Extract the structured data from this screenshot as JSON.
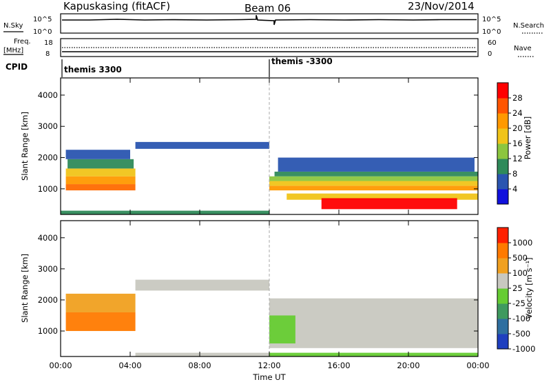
{
  "header": {
    "title": "Kapuskasing (fitACF)",
    "beam": "Beam 06",
    "date": "23/Nov/2014"
  },
  "noise_panel": {
    "left_label": "N.Sky",
    "right_label": "N.Search",
    "ticks": [
      "10^5",
      "10^0"
    ]
  },
  "freq_panel": {
    "left_label": "Freq.",
    "unit_label": "[MHz]",
    "left_ticks": [
      "18",
      "8"
    ],
    "right_label": "Nave",
    "right_ticks": [
      "60",
      "0"
    ]
  },
  "cpid": {
    "label": "CPID",
    "segments": [
      "themis 3300",
      "themis -3300"
    ]
  },
  "chart_data": [
    {
      "type": "heatmap",
      "name": "power",
      "ylabel": "Slant Range [km]",
      "xlabel": "",
      "x_ticks": [
        "00:00",
        "04:00",
        "08:00",
        "12:00",
        "16:00",
        "20:00",
        "00:00"
      ],
      "y_ticks": [
        "1000",
        "2000",
        "3000",
        "4000"
      ],
      "ylim": [
        180,
        4550
      ],
      "xlim_hours": [
        0,
        24
      ],
      "colorbar": {
        "label": "Power [dB]",
        "ticks": [
          "4",
          "8",
          "12",
          "16",
          "20",
          "24",
          "28"
        ],
        "colors": [
          "#1111dd",
          "#2a55b0",
          "#2f8a5a",
          "#8cc63f",
          "#f0c419",
          "#ff9900",
          "#ff5500",
          "#ff0000"
        ]
      },
      "bands": [
        {
          "t0": 0.3,
          "t1": 4.3,
          "r0": 950,
          "r1": 1150,
          "color": "#ff6a00"
        },
        {
          "t0": 0.3,
          "t1": 4.3,
          "r0": 1150,
          "r1": 1400,
          "color": "#ff9900"
        },
        {
          "t0": 0.3,
          "t1": 4.3,
          "r0": 1400,
          "r1": 1650,
          "color": "#f0c419"
        },
        {
          "t0": 0.4,
          "t1": 4.2,
          "r0": 1650,
          "r1": 1950,
          "color": "#2f8a5a"
        },
        {
          "t0": 0.3,
          "t1": 4.0,
          "r0": 1950,
          "r1": 2250,
          "color": "#2a55b0"
        },
        {
          "t0": 4.3,
          "t1": 12.0,
          "r0": 2280,
          "r1": 2500,
          "color": "#2a55b0"
        },
        {
          "t0": 12.0,
          "t1": 24.0,
          "r0": 950,
          "r1": 1100,
          "color": "#ff9900"
        },
        {
          "t0": 12.0,
          "t1": 24.0,
          "r0": 1100,
          "r1": 1250,
          "color": "#f0c419"
        },
        {
          "t0": 12.0,
          "t1": 24.0,
          "r0": 1250,
          "r1": 1400,
          "color": "#8cc63f"
        },
        {
          "t0": 12.3,
          "t1": 24.0,
          "r0": 1400,
          "r1": 1550,
          "color": "#2f8a5a"
        },
        {
          "t0": 12.5,
          "t1": 23.8,
          "r0": 1550,
          "r1": 2000,
          "color": "#2a55b0"
        },
        {
          "t0": 13.0,
          "t1": 24.0,
          "r0": 650,
          "r1": 850,
          "color": "#f0c419"
        },
        {
          "t0": 15.0,
          "t1": 22.8,
          "r0": 350,
          "r1": 700,
          "color": "#ff0000"
        },
        {
          "t0": 0.0,
          "t1": 12.0,
          "r0": 180,
          "r1": 300,
          "color": "#2f8a5a"
        }
      ]
    },
    {
      "type": "heatmap",
      "name": "velocity",
      "ylabel": "Slant Range [km]",
      "xlabel": "Time UT",
      "x_ticks": [
        "00:00",
        "04:00",
        "08:00",
        "12:00",
        "16:00",
        "20:00",
        "00:00"
      ],
      "y_ticks": [
        "1000",
        "2000",
        "3000",
        "4000"
      ],
      "ylim": [
        180,
        4550
      ],
      "xlim_hours": [
        0,
        24
      ],
      "colorbar": {
        "label": "Velocity [m s⁻¹]",
        "ticks": [
          "1000",
          "500",
          "100",
          "25",
          "-25",
          "-100",
          "-500",
          "-1000"
        ],
        "colors": [
          "#1f3fbf",
          "#2f6fa0",
          "#3f9a5f",
          "#66cc33",
          "#c8c8c0",
          "#f0a020",
          "#ff7a00",
          "#ff2000"
        ]
      },
      "bands": [
        {
          "t0": 0.3,
          "t1": 4.3,
          "r0": 1000,
          "r1": 1600,
          "color": "#ff7a00"
        },
        {
          "t0": 0.3,
          "t1": 4.3,
          "r0": 1600,
          "r1": 2200,
          "color": "#f0a020"
        },
        {
          "t0": 4.3,
          "t1": 12.0,
          "r0": 2300,
          "r1": 2650,
          "color": "#c8c8c0"
        },
        {
          "t0": 12.0,
          "t1": 24.0,
          "r0": 450,
          "r1": 2050,
          "color": "#c8c8c0"
        },
        {
          "t0": 12.0,
          "t1": 13.5,
          "r0": 600,
          "r1": 1500,
          "color": "#66cc33"
        },
        {
          "t0": 12.0,
          "t1": 24.0,
          "r0": 180,
          "r1": 300,
          "color": "#66cc33"
        },
        {
          "t0": 4.3,
          "t1": 12.0,
          "r0": 180,
          "r1": 300,
          "color": "#c8c8c0"
        }
      ]
    }
  ]
}
